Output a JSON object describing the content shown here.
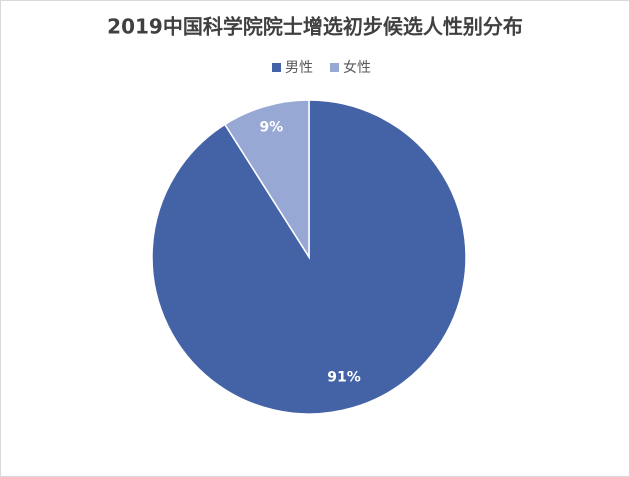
{
  "chart_data": {
    "type": "pie",
    "title": "2019中国科学院院士增选初步候选人性别分布",
    "categories": [
      "男性",
      "女性"
    ],
    "values": [
      91,
      9
    ],
    "value_labels": [
      "91%",
      "9%"
    ],
    "colors": [
      "#4462a6",
      "#98a8d4"
    ],
    "legend": "top"
  }
}
